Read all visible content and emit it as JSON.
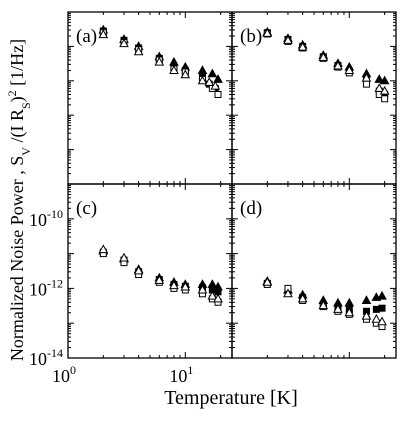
{
  "chart_data": {
    "type": "scatter",
    "xlabel": "Temperature [K]",
    "ylabel": "Normalized Noise Power , S_V /(I R_S)^2 [1/Hz]",
    "ylabel_parts": {
      "main": "Normalized Noise Power , S",
      "sub1": "V",
      "mid": " /(I R",
      "sub2": "S",
      "close": ")",
      "sup": "2",
      "unit": " [1/Hz]"
    },
    "x_scale": "log",
    "y_scale": "log",
    "x_ticks": [
      {
        "base": "10",
        "exp": "0"
      },
      {
        "base": "10",
        "exp": "1"
      }
    ],
    "y_ticks": [
      {
        "base": "10",
        "exp": "-10"
      },
      {
        "base": "10",
        "exp": "-12"
      },
      {
        "base": "10",
        "exp": "-14"
      }
    ],
    "grid": false,
    "panels": [
      {
        "label": "(a)",
        "xlim": [
          1,
          25
        ],
        "ylim": [
          1e-14,
          1e-09
        ],
        "series": [
          {
            "marker": "filled-square",
            "x": [
              2.0,
              3.0,
              4.0,
              6.0,
              8.0,
              10.0,
              14.0,
              16.0,
              18.0
            ],
            "y": [
              2.8e-10,
              1.5e-10,
              9e-11,
              4.5e-11,
              2.5e-11,
              2e-11,
              1.3e-11,
              8e-12,
              6e-12
            ]
          },
          {
            "marker": "filled-triangle",
            "x": [
              2.0,
              3.0,
              4.0,
              6.0,
              8.0,
              10.0,
              14.0,
              17.0,
              19.0
            ],
            "y": [
              3e-10,
              1.6e-10,
              1e-10,
              5e-11,
              3.5e-11,
              2.5e-11,
              2e-11,
              1.6e-11,
              1.1e-11
            ]
          },
          {
            "marker": "open-square",
            "x": [
              2.0,
              3.0,
              4.0,
              6.0,
              8.0,
              10.0,
              14.0,
              17.0,
              19.0
            ],
            "y": [
              2.5e-10,
              1.3e-10,
              8e-11,
              4e-11,
              2.2e-11,
              1.8e-11,
              1.1e-11,
              6e-12,
              4e-12
            ]
          },
          {
            "marker": "open-triangle",
            "x": [
              2.0,
              3.0,
              4.0,
              6.0,
              8.0,
              10.0,
              14.0,
              16.0,
              18.0
            ],
            "y": [
              2.2e-10,
              1.2e-10,
              7e-11,
              3.5e-11,
              2e-11,
              1.5e-11,
              1e-11,
              9e-12,
              7e-12
            ]
          }
        ]
      },
      {
        "label": "(b)",
        "xlim": [
          1,
          25
        ],
        "ylim": [
          1e-14,
          1e-09
        ],
        "series": [
          {
            "marker": "filled-square",
            "x": [
              2.0,
              3.0,
              4.0,
              6.0,
              8.0,
              10.0,
              14.0,
              18.0,
              20.0
            ],
            "y": [
              2.5e-10,
              1.6e-10,
              1e-10,
              5e-11,
              2.8e-11,
              1.9e-11,
              1e-11,
              5e-12,
              4e-12
            ]
          },
          {
            "marker": "filled-triangle",
            "x": [
              2.0,
              3.0,
              4.0,
              6.0,
              8.0,
              10.0,
              14.0,
              18.0,
              20.0
            ],
            "y": [
              2.6e-10,
              1.7e-10,
              1.1e-10,
              5.5e-11,
              3.2e-11,
              2.5e-11,
              1.6e-11,
              1.1e-11,
              1e-11
            ]
          },
          {
            "marker": "open-square",
            "x": [
              2.0,
              3.0,
              4.0,
              6.0,
              8.0,
              10.0,
              14.0,
              18.0,
              20.0
            ],
            "y": [
              2.3e-10,
              1.4e-10,
              9e-11,
              4.5e-11,
              2.5e-11,
              1.7e-11,
              8e-12,
              4e-12,
              3e-12
            ]
          },
          {
            "marker": "open-triangle",
            "x": [
              2.0,
              3.0,
              4.0,
              6.0,
              8.0,
              10.0,
              14.0,
              18.0,
              20.0
            ],
            "y": [
              2.4e-10,
              1.5e-10,
              9.5e-11,
              4.8e-11,
              2.7e-11,
              2e-11,
              1.2e-11,
              6e-12,
              5e-12
            ]
          }
        ]
      },
      {
        "label": "(c)",
        "xlim": [
          1,
          25
        ],
        "ylim": [
          1e-14,
          1e-09
        ],
        "series": [
          {
            "marker": "filled-square",
            "x": [
              2.0,
              3.0,
              4.0,
              6.0,
              8.0,
              10.0,
              14.0,
              17.0,
              19.0
            ],
            "y": [
              1.1e-11,
              6.5e-12,
              3e-12,
              1.8e-12,
              1.3e-12,
              1.15e-12,
              1.05e-12,
              9e-13,
              8e-13
            ]
          },
          {
            "marker": "filled-triangle",
            "x": [
              2.0,
              3.0,
              4.0,
              6.0,
              8.0,
              10.0,
              14.0,
              17.0,
              19.0
            ],
            "y": [
              1.2e-11,
              7e-12,
              3.5e-12,
              2e-12,
              1.5e-12,
              1.3e-12,
              1.3e-12,
              1.3e-12,
              1.1e-12
            ]
          },
          {
            "marker": "open-square",
            "x": [
              2.0,
              3.0,
              4.0,
              6.0,
              8.0,
              10.0,
              14.0,
              17.0,
              19.0
            ],
            "y": [
              1e-11,
              5.5e-12,
              2.5e-12,
              1.5e-12,
              1e-12,
              9e-13,
              7e-13,
              5e-13,
              4e-13
            ]
          },
          {
            "marker": "open-triangle",
            "x": [
              2.0,
              3.0,
              4.0,
              6.0,
              8.0,
              10.0,
              14.0,
              17.0,
              19.0
            ],
            "y": [
              1.3e-11,
              7.5e-12,
              3.2e-12,
              1.7e-12,
              1.2e-12,
              1.1e-12,
              9e-13,
              6e-13,
              5e-13
            ]
          }
        ]
      },
      {
        "label": "(d)",
        "xlim": [
          1,
          25
        ],
        "ylim": [
          1e-14,
          1e-09
        ],
        "series": [
          {
            "marker": "filled-square",
            "x": [
              2.0,
              3.0,
              4.0,
              6.0,
              8.0,
              10.0,
              14.0,
              17.0,
              19.0
            ],
            "y": [
              1.4e-12,
              8e-13,
              5.5e-13,
              3.5e-13,
              2.8e-13,
              2.5e-13,
              2.2e-13,
              2.5e-13,
              2.7e-13
            ]
          },
          {
            "marker": "filled-triangle",
            "x": [
              2.0,
              3.0,
              4.0,
              6.0,
              8.0,
              10.0,
              14.0,
              17.0,
              19.0
            ],
            "y": [
              1.6e-12,
              9e-13,
              6.5e-13,
              4.5e-13,
              3.8e-13,
              3.8e-13,
              4.5e-13,
              5.5e-13,
              6e-13
            ]
          },
          {
            "marker": "open-square",
            "x": [
              2.0,
              3.0,
              4.0,
              6.0,
              8.0,
              10.0,
              14.0,
              17.0,
              19.0
            ],
            "y": [
              1.3e-12,
              1e-12,
              4.5e-13,
              3e-13,
              2.2e-13,
              1.8e-13,
              1.3e-13,
              1e-13,
              8e-14
            ]
          },
          {
            "marker": "open-triangle",
            "x": [
              2.0,
              3.0,
              4.0,
              6.0,
              8.0,
              10.0,
              14.0,
              17.0,
              19.0
            ],
            "y": [
              1.5e-12,
              7e-13,
              5e-13,
              3.2e-13,
              2.5e-13,
              2e-13,
              1.6e-13,
              1.3e-13,
              1.1e-13
            ]
          }
        ]
      }
    ]
  }
}
